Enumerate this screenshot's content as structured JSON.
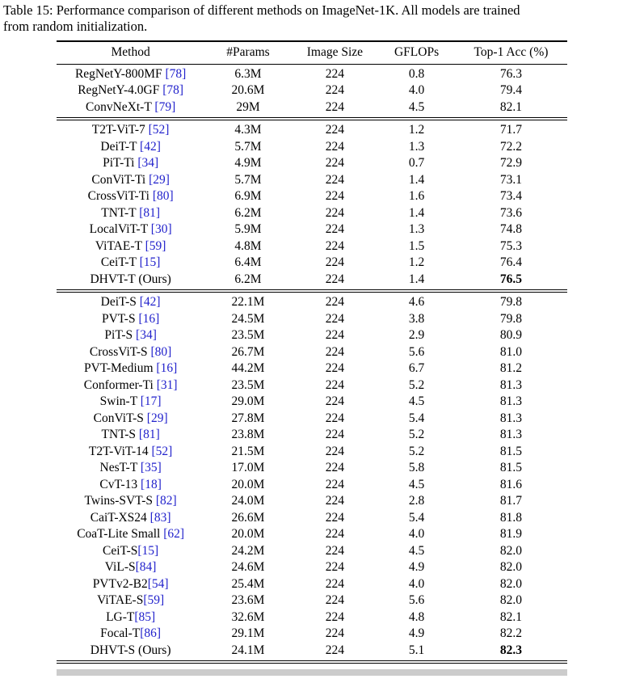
{
  "caption": {
    "line1": "Table 15: Performance comparison of different methods on ImageNet-1K. All models are trained",
    "line2": "from random initialization."
  },
  "colors": {
    "citation_link": "#2222cc",
    "partial_strip": "#cccccc",
    "rule": "#000000"
  },
  "table": {
    "headers": [
      "Method",
      "#Params",
      "Image Size",
      "GFLOPs",
      "Top-1 Acc (%)"
    ],
    "groups": [
      {
        "rows": [
          {
            "name": "RegNetY-800MF",
            "cite": "[78]",
            "params": "6.3M",
            "size": "224",
            "gflops": "0.8",
            "acc": "76.3"
          },
          {
            "name": "RegNetY-4.0GF",
            "cite": "[78]",
            "params": "20.6M",
            "size": "224",
            "gflops": "4.0",
            "acc": "79.4"
          },
          {
            "name": "ConvNeXt-T",
            "cite": "[79]",
            "params": "29M",
            "size": "224",
            "gflops": "4.5",
            "acc": "82.1"
          }
        ]
      },
      {
        "rows": [
          {
            "name": "T2T-ViT-7",
            "cite": "[52]",
            "params": "4.3M",
            "size": "224",
            "gflops": "1.2",
            "acc": "71.7"
          },
          {
            "name": "DeiT-T",
            "cite": "[42]",
            "params": "5.7M",
            "size": "224",
            "gflops": "1.3",
            "acc": "72.2"
          },
          {
            "name": "PiT-Ti",
            "cite": "[34]",
            "params": "4.9M",
            "size": "224",
            "gflops": "0.7",
            "acc": "72.9"
          },
          {
            "name": "ConViT-Ti",
            "cite": "[29]",
            "params": "5.7M",
            "size": "224",
            "gflops": "1.4",
            "acc": "73.1"
          },
          {
            "name": "CrossViT-Ti",
            "cite": "[80]",
            "params": "6.9M",
            "size": "224",
            "gflops": "1.6",
            "acc": "73.4"
          },
          {
            "name": "TNT-T",
            "cite": "[81]",
            "params": "6.2M",
            "size": "224",
            "gflops": "1.4",
            "acc": "73.6"
          },
          {
            "name": "LocalViT-T",
            "cite": "[30]",
            "params": "5.9M",
            "size": "224",
            "gflops": "1.3",
            "acc": "74.8"
          },
          {
            "name": "ViTAE-T",
            "cite": "[59]",
            "params": "4.8M",
            "size": "224",
            "gflops": "1.5",
            "acc": "75.3"
          },
          {
            "name": "CeiT-T",
            "cite": "[15]",
            "params": "6.4M",
            "size": "224",
            "gflops": "1.2",
            "acc": "76.4"
          },
          {
            "name": "DHVT-T (Ours)",
            "cite": "",
            "params": "6.2M",
            "size": "224",
            "gflops": "1.4",
            "acc": "76.5",
            "bold": true
          }
        ]
      },
      {
        "rows": [
          {
            "name": "DeiT-S",
            "cite": "[42]",
            "params": "22.1M",
            "size": "224",
            "gflops": "4.6",
            "acc": "79.8"
          },
          {
            "name": "PVT-S",
            "cite": "[16]",
            "params": "24.5M",
            "size": "224",
            "gflops": "3.8",
            "acc": "79.8"
          },
          {
            "name": "PiT-S",
            "cite": "[34]",
            "params": "23.5M",
            "size": "224",
            "gflops": "2.9",
            "acc": "80.9"
          },
          {
            "name": "CrossViT-S",
            "cite": "[80]",
            "params": "26.7M",
            "size": "224",
            "gflops": "5.6",
            "acc": "81.0"
          },
          {
            "name": "PVT-Medium",
            "cite": "[16]",
            "params": "44.2M",
            "size": "224",
            "gflops": "6.7",
            "acc": "81.2"
          },
          {
            "name": "Conformer-Ti",
            "cite": "[31]",
            "params": "23.5M",
            "size": "224",
            "gflops": "5.2",
            "acc": "81.3"
          },
          {
            "name": "Swin-T",
            "cite": "[17]",
            "params": "29.0M",
            "size": "224",
            "gflops": "4.5",
            "acc": "81.3"
          },
          {
            "name": "ConViT-S",
            "cite": "[29]",
            "params": "27.8M",
            "size": "224",
            "gflops": "5.4",
            "acc": "81.3"
          },
          {
            "name": "TNT-S",
            "cite": "[81]",
            "params": "23.8M",
            "size": "224",
            "gflops": "5.2",
            "acc": "81.3"
          },
          {
            "name": "T2T-ViT-14",
            "cite": "[52]",
            "params": "21.5M",
            "size": "224",
            "gflops": "5.2",
            "acc": "81.5"
          },
          {
            "name": "NesT-T",
            "cite": "[35]",
            "params": "17.0M",
            "size": "224",
            "gflops": "5.8",
            "acc": "81.5"
          },
          {
            "name": "CvT-13",
            "cite": "[18]",
            "params": "20.0M",
            "size": "224",
            "gflops": "4.5",
            "acc": "81.6"
          },
          {
            "name": "Twins-SVT-S",
            "cite": "[82]",
            "params": "24.0M",
            "size": "224",
            "gflops": "2.8",
            "acc": "81.7"
          },
          {
            "name": "CaiT-XS24",
            "cite": "[83]",
            "params": "26.6M",
            "size": "224",
            "gflops": "5.4",
            "acc": "81.8"
          },
          {
            "name": "CoaT-Lite Small",
            "cite": "[62]",
            "params": "20.0M",
            "size": "224",
            "gflops": "4.0",
            "acc": "81.9"
          },
          {
            "name": "CeiT-S",
            "cite": "[15]",
            "nospace": true,
            "params": "24.2M",
            "size": "224",
            "gflops": "4.5",
            "acc": "82.0"
          },
          {
            "name": "ViL-S",
            "cite": "[84]",
            "nospace": true,
            "params": "24.6M",
            "size": "224",
            "gflops": "4.9",
            "acc": "82.0"
          },
          {
            "name": "PVTv2-B2",
            "cite": "[54]",
            "nospace": true,
            "params": "25.4M",
            "size": "224",
            "gflops": "4.0",
            "acc": "82.0"
          },
          {
            "name": "ViTAE-S",
            "cite": "[59]",
            "nospace": true,
            "params": "23.6M",
            "size": "224",
            "gflops": "5.6",
            "acc": "82.0"
          },
          {
            "name": "LG-T",
            "cite": "[85]",
            "nospace": true,
            "params": "32.6M",
            "size": "224",
            "gflops": "4.8",
            "acc": "82.1"
          },
          {
            "name": "Focal-T",
            "cite": "[86]",
            "nospace": true,
            "params": "29.1M",
            "size": "224",
            "gflops": "4.9",
            "acc": "82.2"
          },
          {
            "name": "DHVT-S (Ours)",
            "cite": "",
            "params": "24.1M",
            "size": "224",
            "gflops": "5.1",
            "acc": "82.3",
            "bold": true
          }
        ]
      }
    ]
  }
}
